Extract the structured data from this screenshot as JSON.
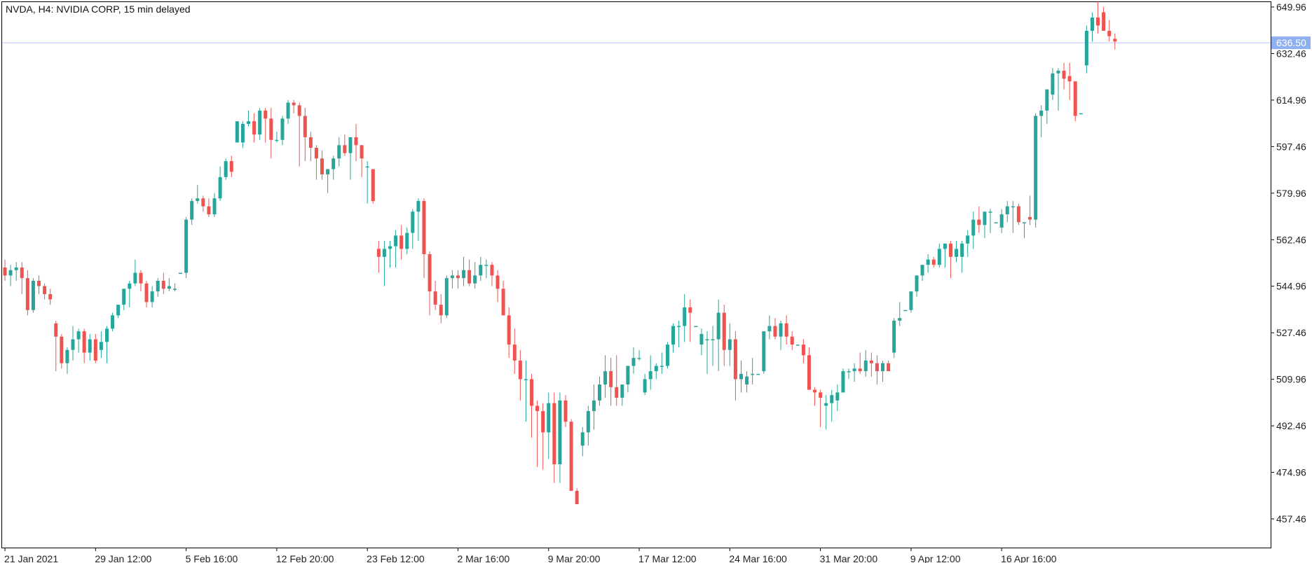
{
  "header": {
    "symbol": "NVDA",
    "timeframe": "H4",
    "name": "NVIDIA CORP",
    "delay": "15 min delayed",
    "title": "NVDA, H4:  NVIDIA CORP, 15 min delayed"
  },
  "colors": {
    "bull": "#26a69a",
    "bear": "#ef5350",
    "frame": "#000000",
    "price_line": "#b8c8ef",
    "price_label_bg": "#8fb0f0"
  },
  "chart_data": {
    "type": "candlestick",
    "title": "NVDA, H4:  NVIDIA CORP, 15 min delayed",
    "current_price": 636.5,
    "current_price_label": "636.50",
    "ylim": [
      443,
      653
    ],
    "y_ticks": [
      "649.96",
      "632.46",
      "614.96",
      "597.46",
      "579.96",
      "562.46",
      "544.96",
      "527.46",
      "509.96",
      "492.46",
      "474.96",
      "457.46"
    ],
    "y_tick_values": [
      649.96,
      632.46,
      614.96,
      597.46,
      579.96,
      562.46,
      544.96,
      527.46,
      509.96,
      492.46,
      474.96,
      457.46
    ],
    "x_labels": [
      "21 Jan 2021",
      "29 Jan 12:00",
      "5 Feb 16:00",
      "12 Feb 20:00",
      "23 Feb 12:00",
      "2 Mar 16:00",
      "9 Mar 20:00",
      "17 Mar 12:00",
      "24 Mar 16:00",
      "31 Mar 20:00",
      "9 Apr 12:00",
      "16 Apr 16:00"
    ],
    "x_label_indices": [
      0,
      16,
      32,
      48,
      64,
      80,
      96,
      112,
      128,
      144,
      160,
      176
    ],
    "num_slots": 224,
    "candles": [
      [
        552,
        555,
        547,
        549
      ],
      [
        549,
        553,
        545,
        551
      ],
      [
        551,
        554,
        547,
        552
      ],
      [
        552,
        554,
        542,
        548
      ],
      [
        548,
        551,
        534,
        536
      ],
      [
        536,
        548,
        535,
        547
      ],
      [
        547,
        549,
        542,
        545
      ],
      [
        545,
        546,
        540,
        542
      ],
      [
        542,
        544,
        538,
        540
      ],
      [
        531,
        532,
        513,
        526
      ],
      [
        526,
        527,
        514,
        516
      ],
      [
        516,
        522,
        512,
        521
      ],
      [
        521,
        530,
        517,
        525
      ],
      [
        525,
        529,
        520,
        528
      ],
      [
        528,
        529,
        516,
        520
      ],
      [
        520,
        527,
        517,
        525
      ],
      [
        525,
        527,
        516,
        517
      ],
      [
        521,
        528,
        518,
        524
      ],
      [
        524,
        530,
        516,
        529
      ],
      [
        529,
        535,
        528,
        534
      ],
      [
        534,
        538,
        533,
        538
      ],
      [
        538,
        544,
        536,
        544
      ],
      [
        544,
        547,
        537,
        546
      ],
      [
        546,
        555,
        545,
        550
      ],
      [
        550,
        551,
        543,
        546
      ],
      [
        546,
        547,
        537,
        539
      ],
      [
        539,
        545,
        537,
        543
      ],
      [
        543,
        548,
        541,
        547
      ],
      [
        547,
        550,
        542,
        544
      ],
      [
        544,
        548,
        543,
        545
      ],
      [
        544,
        546,
        543,
        544
      ],
      [
        550,
        550,
        550,
        550
      ],
      [
        550,
        571,
        548,
        570
      ],
      [
        570,
        578,
        568,
        577
      ],
      [
        577,
        583,
        576,
        578
      ],
      [
        578,
        579,
        573,
        575
      ],
      [
        575,
        578,
        571,
        572
      ],
      [
        572,
        580,
        571,
        578
      ],
      [
        578,
        590,
        577,
        586
      ],
      [
        586,
        593,
        585,
        592
      ],
      [
        592,
        594,
        586,
        588
      ],
      [
        599,
        605,
        599,
        607
      ],
      [
        599,
        607,
        597,
        606
      ],
      [
        606,
        611,
        605,
        607
      ],
      [
        607,
        610,
        599,
        602
      ],
      [
        602,
        612,
        600,
        611
      ],
      [
        611,
        612,
        599,
        608
      ],
      [
        608,
        612,
        593,
        600
      ],
      [
        600,
        603,
        599,
        600
      ],
      [
        600,
        609,
        598,
        608
      ],
      [
        608,
        615,
        606,
        614
      ],
      [
        614,
        615,
        610,
        613
      ],
      [
        613,
        614,
        590,
        609
      ],
      [
        609,
        612,
        592,
        601
      ],
      [
        601,
        603,
        592,
        597
      ],
      [
        597,
        598,
        585,
        593
      ],
      [
        593,
        596,
        585,
        587
      ],
      [
        587,
        589,
        580,
        589
      ],
      [
        589,
        594,
        585,
        593
      ],
      [
        593,
        601,
        590,
        598
      ],
      [
        598,
        602,
        594,
        595
      ],
      [
        595,
        600,
        585,
        601
      ],
      [
        601,
        606,
        592,
        598
      ],
      [
        598,
        598,
        586,
        593
      ],
      [
        590,
        592,
        576,
        590
      ],
      [
        589,
        589,
        576,
        577
      ],
      [
        559,
        562,
        550,
        556
      ],
      [
        556,
        562,
        545,
        559
      ],
      [
        559,
        562,
        552,
        560
      ],
      [
        560,
        566,
        552,
        564
      ],
      [
        564,
        568,
        555,
        559
      ],
      [
        559,
        567,
        557,
        565
      ],
      [
        565,
        574,
        559,
        573
      ],
      [
        573,
        578,
        562,
        577
      ],
      [
        577,
        578,
        548,
        557
      ],
      [
        557,
        558,
        534,
        543
      ],
      [
        543,
        547,
        536,
        538
      ],
      [
        538,
        542,
        531,
        534
      ],
      [
        534,
        549,
        533,
        548
      ],
      [
        548,
        551,
        544,
        549
      ],
      [
        549,
        551,
        544,
        548
      ],
      [
        548,
        556,
        545,
        551
      ],
      [
        551,
        555,
        545,
        546
      ],
      [
        546,
        554,
        544,
        549
      ],
      [
        549,
        556,
        547,
        553
      ],
      [
        553,
        555,
        548,
        553
      ],
      [
        553,
        554,
        545,
        549
      ],
      [
        549,
        551,
        539,
        544
      ],
      [
        544,
        547,
        535,
        534
      ],
      [
        534,
        537,
        518,
        523
      ],
      [
        523,
        529,
        512,
        517
      ],
      [
        517,
        521,
        502,
        510
      ],
      [
        510,
        517,
        494,
        510
      ],
      [
        510,
        512,
        488,
        500
      ],
      [
        500,
        502,
        477,
        498
      ],
      [
        498,
        501,
        476,
        490
      ],
      [
        490,
        505,
        480,
        501
      ],
      [
        501,
        505,
        471,
        478
      ],
      [
        478,
        505,
        471,
        502
      ],
      [
        502,
        504,
        492,
        494
      ],
      [
        494,
        495,
        468,
        468
      ],
      [
        468,
        469,
        463,
        463
      ],
      [
        485,
        492,
        481,
        490
      ],
      [
        490,
        500,
        485,
        498
      ],
      [
        498,
        508,
        491,
        502
      ],
      [
        502,
        511,
        500,
        508
      ],
      [
        508,
        519,
        503,
        513
      ],
      [
        513,
        518,
        500,
        507
      ],
      [
        507,
        519,
        500,
        503
      ],
      [
        503,
        508,
        500,
        508
      ],
      [
        508,
        515,
        505,
        515
      ],
      [
        515,
        522,
        512,
        518
      ],
      [
        518,
        521,
        517,
        518
      ],
      [
        505,
        512,
        504,
        510
      ],
      [
        510,
        519,
        506,
        513
      ],
      [
        513,
        516,
        510,
        515
      ],
      [
        515,
        520,
        512,
        515
      ],
      [
        515,
        524,
        514,
        523
      ],
      [
        523,
        531,
        520,
        530
      ],
      [
        530,
        532,
        522,
        530
      ],
      [
        530,
        542,
        524,
        537
      ],
      [
        537,
        540,
        524,
        535
      ],
      [
        530,
        530,
        530,
        530
      ],
      [
        523,
        529,
        519,
        527
      ],
      [
        525,
        528,
        512,
        525
      ],
      [
        525,
        530,
        515,
        525
      ],
      [
        525,
        540,
        513,
        535
      ],
      [
        535,
        538,
        515,
        521
      ],
      [
        521,
        531,
        515,
        525
      ],
      [
        525,
        528,
        502,
        510
      ],
      [
        510,
        517,
        505,
        512
      ],
      [
        508,
        513,
        505,
        511
      ],
      [
        512,
        518,
        508,
        512
      ],
      [
        512,
        512,
        512,
        512
      ],
      [
        513,
        528,
        512,
        528
      ],
      [
        528,
        534,
        525,
        530
      ],
      [
        530,
        533,
        525,
        526
      ],
      [
        526,
        532,
        521,
        531
      ],
      [
        531,
        534,
        523,
        526
      ],
      [
        526,
        528,
        521,
        523
      ],
      [
        523,
        523,
        523,
        523
      ],
      [
        523,
        525,
        516,
        519
      ],
      [
        519,
        522,
        508,
        506
      ],
      [
        506,
        507,
        500,
        505
      ],
      [
        505,
        506,
        492,
        503
      ],
      [
        500,
        504,
        491,
        501
      ],
      [
        501,
        506,
        494,
        504
      ],
      [
        502,
        508,
        498,
        505
      ],
      [
        505,
        514,
        505,
        513
      ],
      [
        513,
        514,
        510,
        513
      ],
      [
        513,
        516,
        509,
        514
      ],
      [
        514,
        520,
        512,
        513
      ],
      [
        513,
        521,
        511,
        517
      ],
      [
        517,
        520,
        511,
        516
      ],
      [
        516,
        519,
        508,
        513
      ],
      [
        513,
        517,
        509,
        516
      ],
      [
        516,
        517,
        513,
        513
      ],
      [
        520,
        533,
        518,
        532
      ],
      [
        532,
        539,
        530,
        533
      ],
      [
        536,
        536,
        536,
        536
      ],
      [
        536,
        541,
        535,
        543
      ],
      [
        543,
        549,
        541,
        549
      ],
      [
        549,
        553,
        547,
        553
      ],
      [
        553,
        557,
        550,
        555
      ],
      [
        555,
        556,
        552,
        553
      ],
      [
        553,
        561,
        552,
        559
      ],
      [
        559,
        561,
        552,
        561
      ],
      [
        561,
        562,
        548,
        556
      ],
      [
        556,
        562,
        554,
        559
      ],
      [
        556,
        562,
        550,
        561
      ],
      [
        561,
        566,
        556,
        564
      ],
      [
        564,
        573,
        559,
        570
      ],
      [
        570,
        575,
        565,
        568
      ],
      [
        568,
        573,
        563,
        573
      ],
      [
        573,
        574,
        565,
        573
      ],
      [
        569,
        569,
        569,
        569
      ],
      [
        567,
        574,
        565,
        572
      ],
      [
        572,
        577,
        569,
        575
      ],
      [
        575,
        577,
        565,
        575
      ],
      [
        575,
        576,
        568,
        569
      ],
      [
        569,
        569,
        563,
        569
      ],
      [
        571,
        579,
        568,
        570
      ],
      [
        570,
        610,
        567,
        609
      ],
      [
        609,
        613,
        601,
        611
      ],
      [
        611,
        617,
        606,
        619
      ],
      [
        617,
        627,
        615,
        625
      ],
      [
        625,
        627,
        611,
        626
      ],
      [
        626,
        629,
        619,
        623
      ],
      [
        624,
        629,
        615,
        622
      ],
      [
        622,
        622,
        607,
        609
      ],
      [
        610,
        610,
        610,
        610
      ],
      [
        628,
        643,
        625,
        641
      ],
      [
        641,
        648,
        637,
        646
      ],
      [
        646,
        652,
        640,
        643
      ],
      [
        648,
        650,
        641,
        641
      ],
      [
        641,
        645,
        637,
        639
      ],
      [
        638,
        640,
        634,
        637
      ]
    ]
  }
}
